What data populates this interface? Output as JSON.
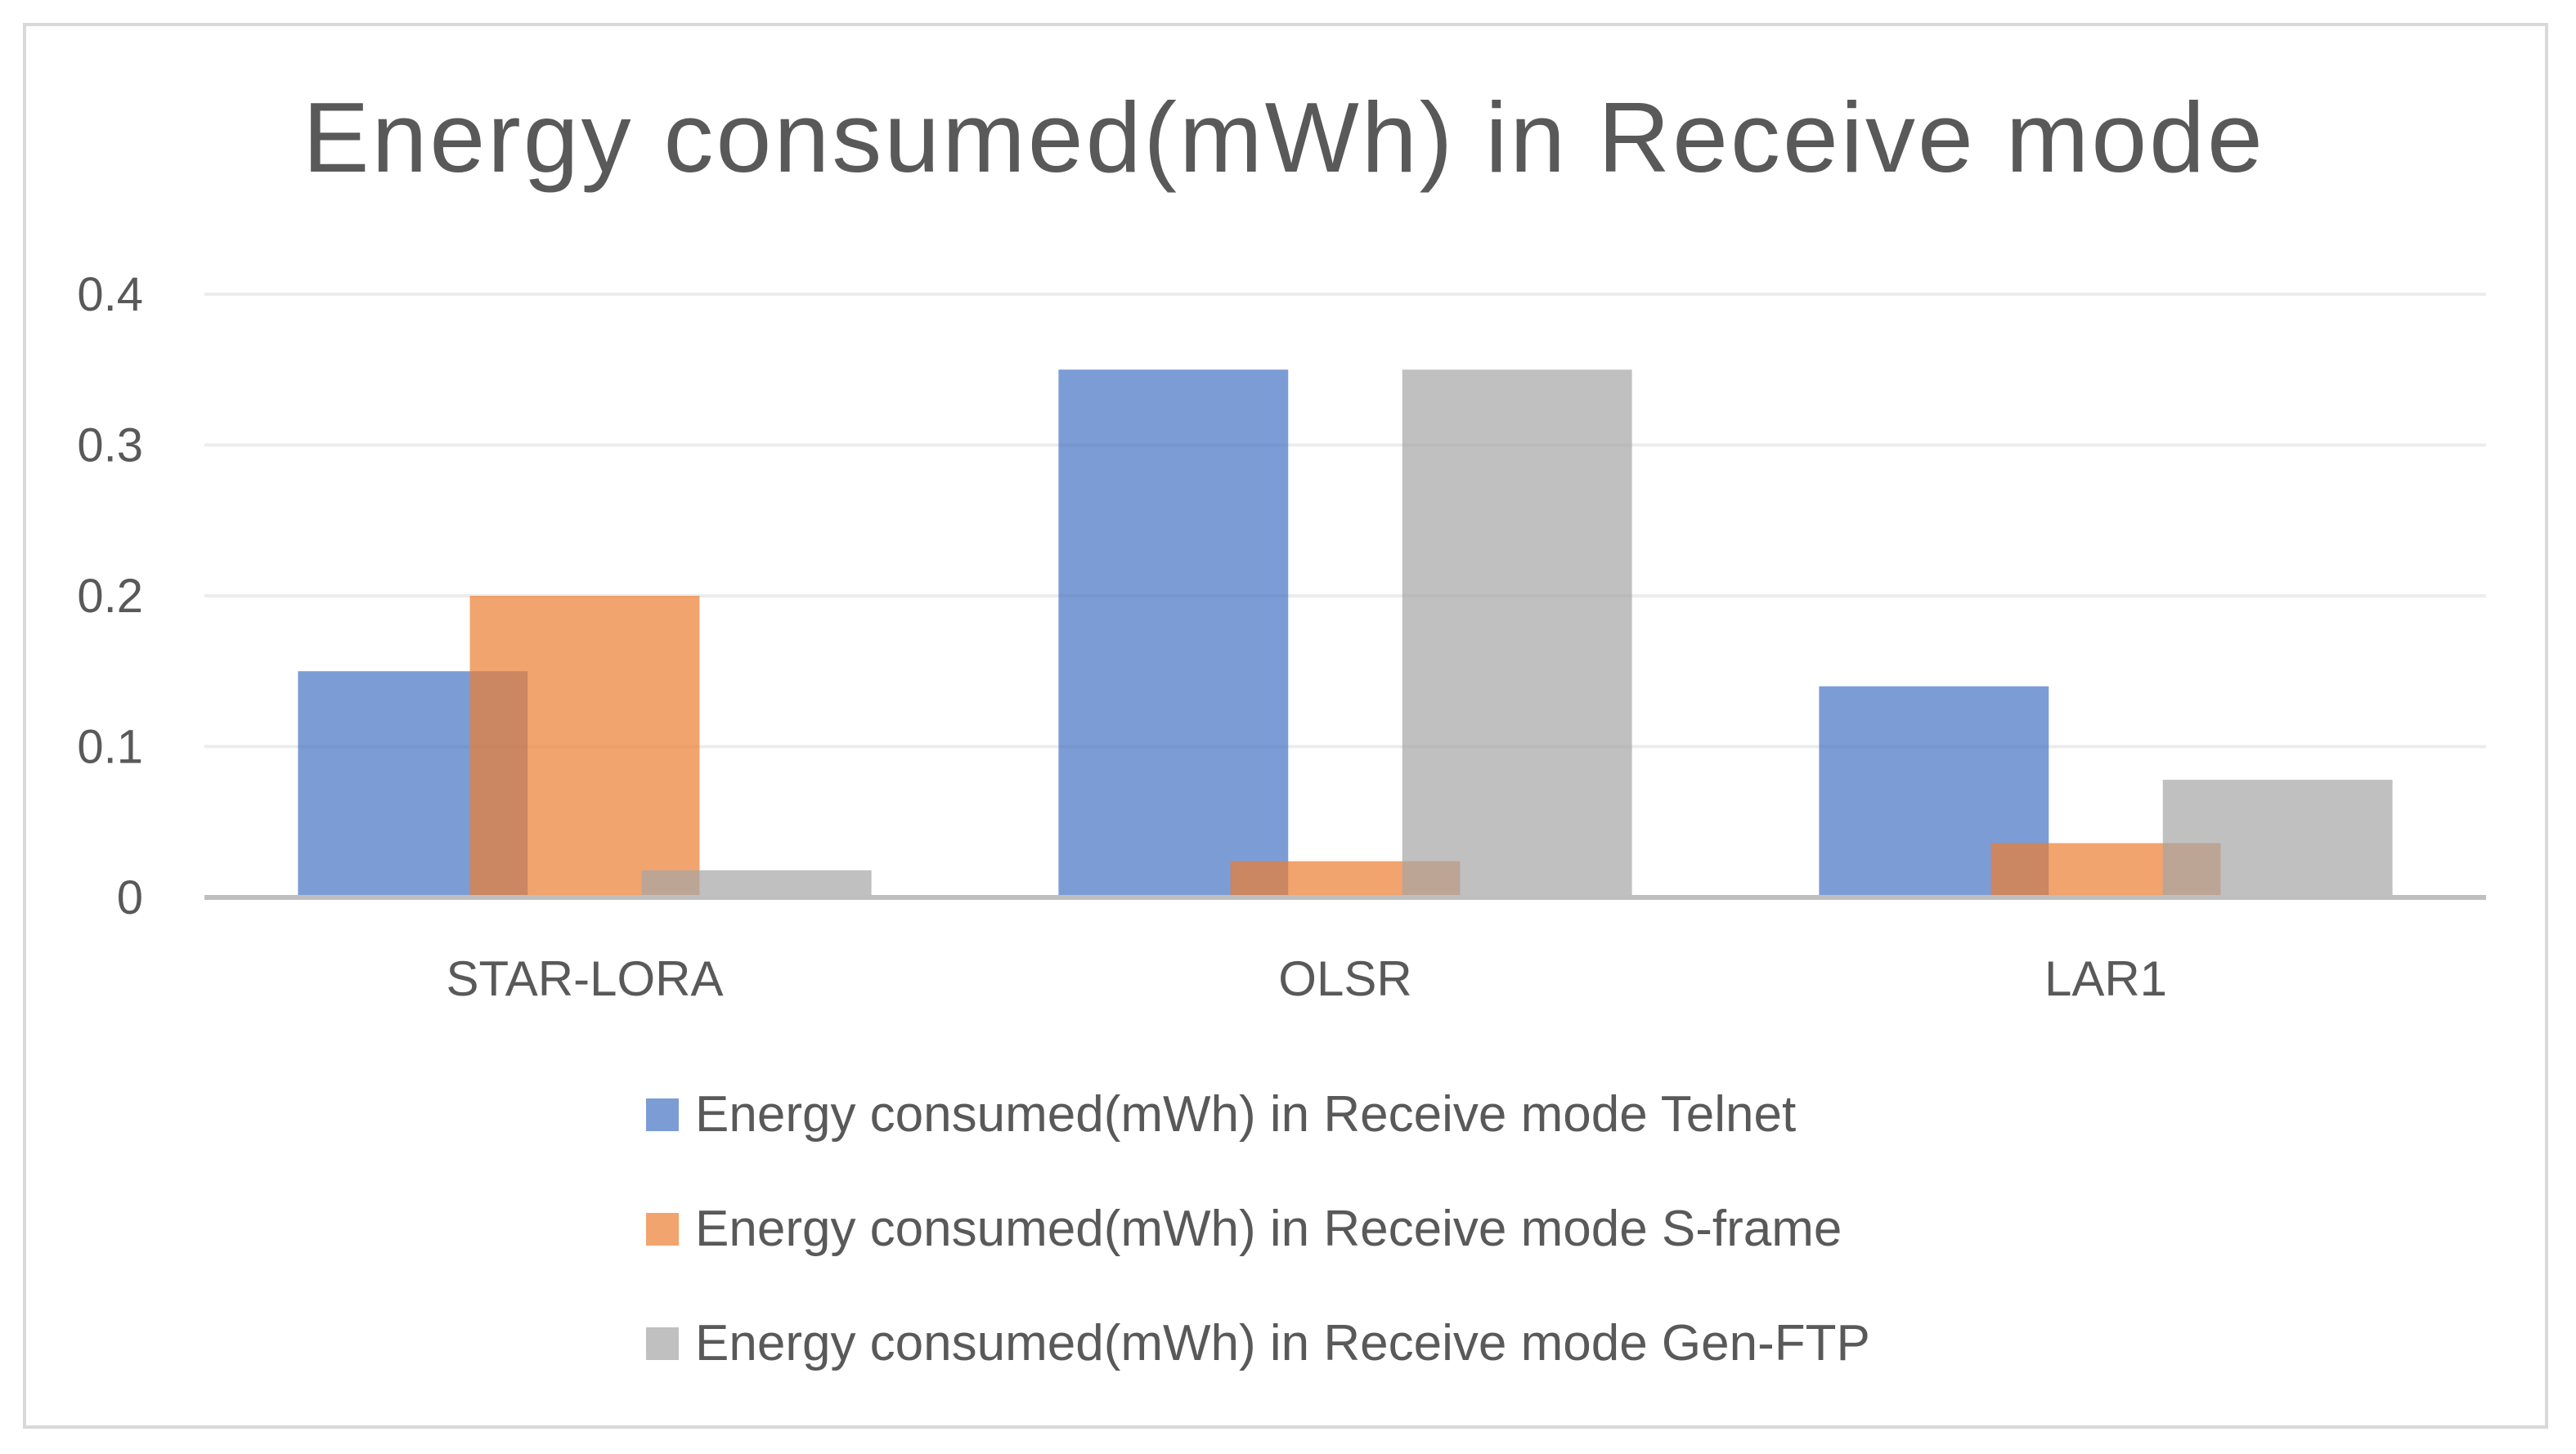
{
  "chart_data": {
    "type": "bar",
    "title": "Energy consumed(mWh) in Receive mode",
    "xlabel": "",
    "ylabel": "",
    "categories": [
      "STAR-LORA",
      "OLSR",
      "LAR1"
    ],
    "ylim": [
      0,
      0.4
    ],
    "yticks": [
      0,
      0.1,
      0.2,
      0.3,
      0.4
    ],
    "ytick_labels": [
      "0",
      "0.1",
      "0.2",
      "0.3",
      "0.4"
    ],
    "grid": true,
    "legend_position": "bottom",
    "series": [
      {
        "name": "Energy consumed(mWh) in Receive mode Telnet",
        "color": "#4472C4",
        "values": [
          0.15,
          0.35,
          0.14
        ]
      },
      {
        "name": "Energy consumed(mWh) in Receive mode S-frame",
        "color": "#ED7D31",
        "values": [
          0.2,
          0.024,
          0.036
        ]
      },
      {
        "name": "Energy consumed(mWh) in Receive mode Gen-FTP",
        "color": "#A5A5A5",
        "values": [
          0.018,
          0.35,
          0.078
        ]
      }
    ]
  }
}
